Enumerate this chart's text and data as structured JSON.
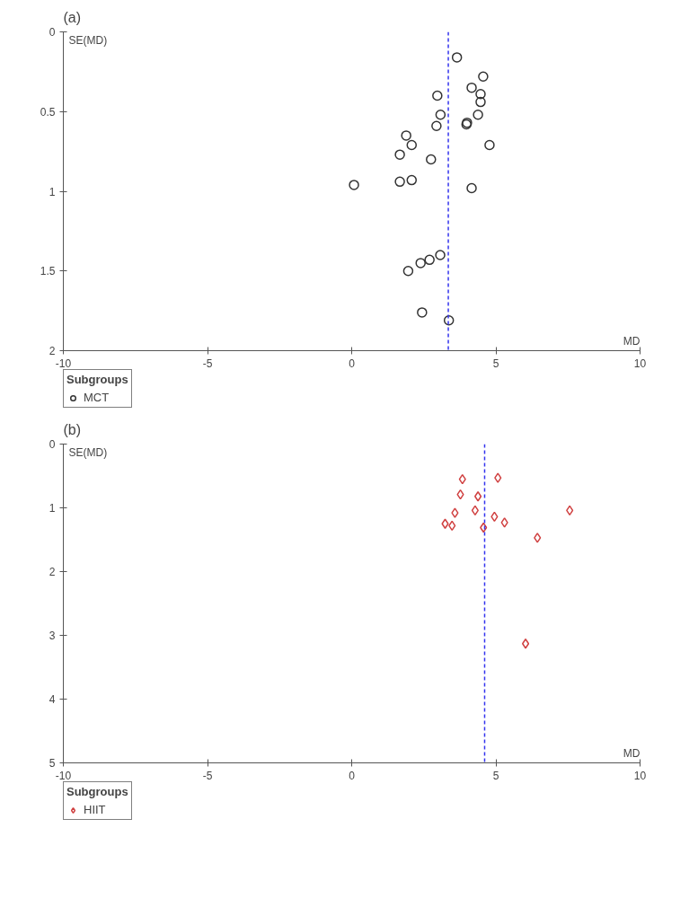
{
  "chart_data": [
    {
      "type": "scatter",
      "title": "(a)",
      "xlabel": "MD",
      "ylabel": "SE(MD)",
      "legend_title": "Subgroups",
      "legend": "bottom",
      "grid": false,
      "marker": "circle",
      "xlim": [
        -10,
        10
      ],
      "xticks": [
        -10,
        -5,
        0,
        5,
        10
      ],
      "ylim": [
        2,
        0
      ],
      "yticks": [
        0,
        0.5,
        1,
        1.5,
        2
      ],
      "ref_lines": [
        {
          "axis": "x",
          "value": 3.35,
          "color": "#3333ee",
          "line_style": "dashed"
        }
      ],
      "series": [
        {
          "name": "MCT",
          "color": "#333333",
          "x": [
            3.65,
            4.56,
            4.16,
            4.47,
            4.47,
            2.97,
            3.08,
            4.38,
            3.98,
            4.0,
            2.94,
            1.89,
            2.08,
            4.78,
            1.67,
            2.75,
            0.08,
            1.67,
            2.08,
            4.16,
            3.07,
            2.7,
            2.39,
            1.96,
            2.44,
            3.37
          ],
          "values": [
            0.16,
            0.28,
            0.35,
            0.39,
            0.44,
            0.4,
            0.52,
            0.52,
            0.58,
            0.57,
            0.59,
            0.65,
            0.71,
            0.71,
            0.77,
            0.8,
            0.96,
            0.94,
            0.93,
            0.98,
            1.4,
            1.43,
            1.45,
            1.5,
            1.76,
            1.81
          ]
        }
      ]
    },
    {
      "type": "scatter",
      "title": "(b)",
      "xlabel": "MD",
      "ylabel": "SE(MD)",
      "legend_title": "Subgroups",
      "legend": "bottom",
      "grid": false,
      "marker": "diamond",
      "xlim": [
        -10,
        10
      ],
      "xticks": [
        -10,
        -5,
        0,
        5,
        10
      ],
      "ylim": [
        5,
        0
      ],
      "yticks": [
        0,
        1,
        2,
        3,
        4,
        5
      ],
      "ref_lines": [
        {
          "axis": "x",
          "value": 4.61,
          "color": "#3333ee",
          "line_style": "dashed"
        }
      ],
      "series": [
        {
          "name": "HIIT",
          "color": "#d04040",
          "x": [
            3.84,
            5.07,
            3.77,
            4.38,
            3.58,
            4.28,
            4.95,
            5.3,
            3.24,
            3.48,
            4.57,
            7.56,
            6.44,
            6.03
          ],
          "values": [
            0.55,
            0.53,
            0.79,
            0.82,
            1.08,
            1.04,
            1.14,
            1.23,
            1.25,
            1.28,
            1.31,
            1.04,
            1.47,
            3.13
          ]
        }
      ]
    }
  ]
}
